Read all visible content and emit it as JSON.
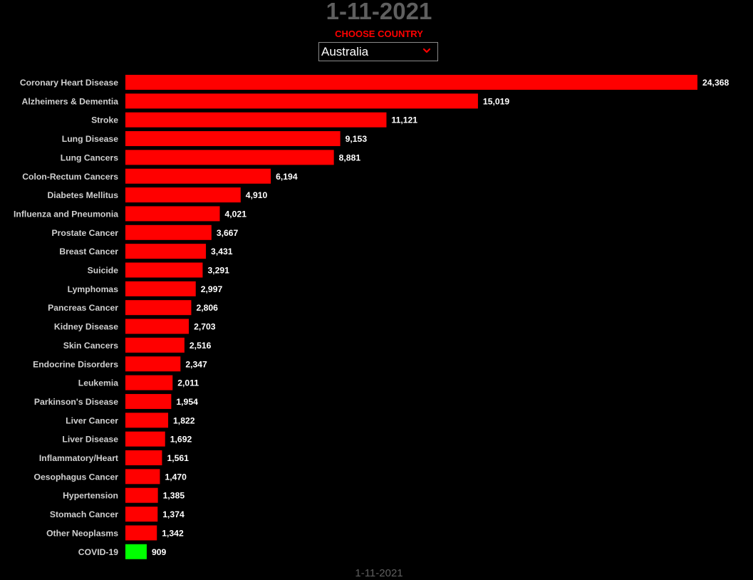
{
  "header": {
    "date": "1-11-2021",
    "choose_label": "CHOOSE COUNTRY",
    "country_selected": "Australia",
    "bottom_date": "1-11-2021"
  },
  "colors": {
    "background": "#000000",
    "bar_default": "#ff0000",
    "bar_highlight": "#00ff00",
    "label_text": "#d0d0d0",
    "value_text": "#ffffff",
    "title_text": "#5f5f5f",
    "accent": "#ff0000"
  },
  "icons": {
    "dropdown": "chevron-down-icon"
  },
  "chart_data": {
    "type": "bar",
    "orientation": "horizontal",
    "title": "",
    "xlabel": "",
    "ylabel": "",
    "grid": false,
    "categories": [
      "Coronary Heart Disease",
      "Alzheimers & Dementia",
      "Stroke",
      "Lung Disease",
      "Lung Cancers",
      "Colon-Rectum Cancers",
      "Diabetes Mellitus",
      "Influenza and Pneumonia",
      "Prostate Cancer",
      "Breast Cancer",
      "Suicide",
      "Lymphomas",
      "Pancreas Cancer",
      "Kidney Disease",
      "Skin Cancers",
      "Endocrine Disorders",
      "Leukemia",
      "Parkinson's Disease",
      "Liver Cancer",
      "Liver Disease",
      "Inflammatory/Heart",
      "Oesophagus Cancer",
      "Hypertension",
      "Stomach Cancer",
      "Other Neoplasms",
      "COVID-19"
    ],
    "values": [
      24368,
      15019,
      11121,
      9153,
      8881,
      6194,
      4910,
      4021,
      3667,
      3431,
      3291,
      2997,
      2806,
      2703,
      2516,
      2347,
      2011,
      1954,
      1822,
      1692,
      1561,
      1470,
      1385,
      1374,
      1342,
      909
    ],
    "value_labels": [
      "24,368",
      "15,019",
      "11,121",
      "9,153",
      "8,881",
      "6,194",
      "4,910",
      "4,021",
      "3,667",
      "3,431",
      "3,291",
      "2,997",
      "2,806",
      "2,703",
      "2,516",
      "2,347",
      "2,011",
      "1,954",
      "1,822",
      "1,692",
      "1,561",
      "1,470",
      "1,385",
      "1,374",
      "1,342",
      "909"
    ],
    "highlight_category": "COVID-19",
    "xlim": [
      0,
      24368
    ]
  }
}
